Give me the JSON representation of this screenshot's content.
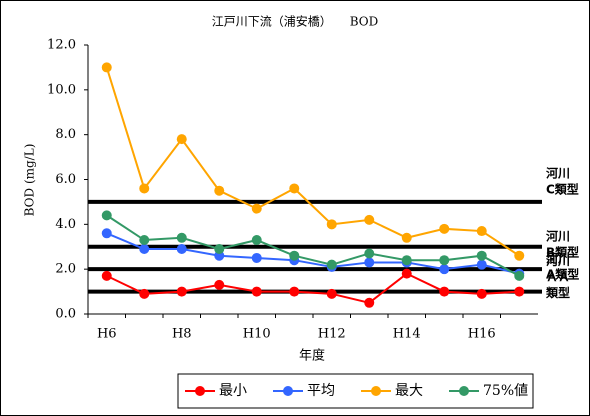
{
  "chart_data": {
    "type": "line",
    "title": "江戸川下流（浦安橋）　　BOD",
    "x_label": "年度",
    "y_label": "BOD (mg/L)",
    "categories": [
      "H6",
      null,
      "H8",
      null,
      "H10",
      null,
      "H12",
      null,
      "H14",
      null,
      "H16",
      null
    ],
    "series": [
      {
        "name": "最小",
        "color": "#ff0000",
        "values": [
          1.7,
          0.9,
          1.0,
          1.3,
          1.0,
          1.0,
          0.9,
          0.5,
          1.8,
          1.0,
          0.9,
          1.0
        ]
      },
      {
        "name": "平均",
        "color": "#3366ff",
        "values": [
          3.6,
          2.9,
          2.9,
          2.6,
          2.5,
          2.4,
          2.1,
          2.3,
          2.3,
          2.0,
          2.2,
          1.8
        ]
      },
      {
        "name": "最大",
        "color": "#ffa500",
        "values": [
          11.0,
          5.6,
          7.8,
          5.5,
          4.7,
          5.6,
          4.0,
          4.2,
          3.4,
          3.8,
          3.7,
          2.6
        ]
      },
      {
        "name": "75%値",
        "color": "#339966",
        "values": [
          4.4,
          3.3,
          3.4,
          2.9,
          3.3,
          2.6,
          2.2,
          2.7,
          2.4,
          2.4,
          2.6,
          1.7
        ]
      }
    ],
    "ylim": [
      0,
      12
    ],
    "yticks": [
      {
        "value": 0,
        "label": "0.0"
      },
      {
        "value": 2,
        "label": "2.0"
      },
      {
        "value": 4,
        "label": "4.0"
      },
      {
        "value": 6,
        "label": "6.0"
      },
      {
        "value": 8,
        "label": "8.0"
      },
      {
        "value": 10,
        "label": "10.0"
      },
      {
        "value": 12,
        "label": "12.0"
      }
    ],
    "reference_lines": [
      {
        "value": 5,
        "label": [
          "河川",
          "C類型"
        ]
      },
      {
        "value": 3,
        "label": [
          "河川",
          "B類型"
        ]
      },
      {
        "value": 2,
        "label": [
          "河川",
          "A類型"
        ]
      },
      {
        "value": 1,
        "label": [
          "河川",
          "ＡＡ",
          "類型"
        ]
      }
    ],
    "legend": "bottom"
  }
}
